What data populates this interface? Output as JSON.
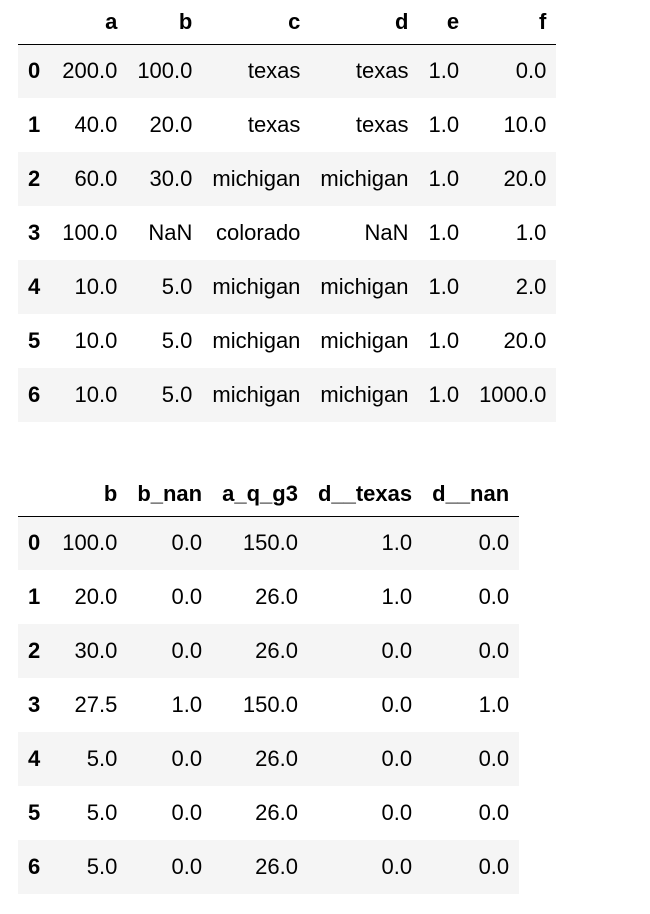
{
  "table1": {
    "columns": [
      "",
      "a",
      "b",
      "c",
      "d",
      "e",
      "f"
    ],
    "rows": [
      {
        "index": "0",
        "cells": [
          "200.0",
          "100.0",
          "texas",
          "texas",
          "1.0",
          "0.0"
        ]
      },
      {
        "index": "1",
        "cells": [
          "40.0",
          "20.0",
          "texas",
          "texas",
          "1.0",
          "10.0"
        ]
      },
      {
        "index": "2",
        "cells": [
          "60.0",
          "30.0",
          "michigan",
          "michigan",
          "1.0",
          "20.0"
        ]
      },
      {
        "index": "3",
        "cells": [
          "100.0",
          "NaN",
          "colorado",
          "NaN",
          "1.0",
          "1.0"
        ]
      },
      {
        "index": "4",
        "cells": [
          "10.0",
          "5.0",
          "michigan",
          "michigan",
          "1.0",
          "2.0"
        ]
      },
      {
        "index": "5",
        "cells": [
          "10.0",
          "5.0",
          "michigan",
          "michigan",
          "1.0",
          "20.0"
        ]
      },
      {
        "index": "6",
        "cells": [
          "10.0",
          "5.0",
          "michigan",
          "michigan",
          "1.0",
          "1000.0"
        ]
      }
    ]
  },
  "table2": {
    "columns": [
      "",
      "b",
      "b_nan",
      "a_q_g3",
      "d__texas",
      "d__nan"
    ],
    "rows": [
      {
        "index": "0",
        "cells": [
          "100.0",
          "0.0",
          "150.0",
          "1.0",
          "0.0"
        ]
      },
      {
        "index": "1",
        "cells": [
          "20.0",
          "0.0",
          "26.0",
          "1.0",
          "0.0"
        ]
      },
      {
        "index": "2",
        "cells": [
          "30.0",
          "0.0",
          "26.0",
          "0.0",
          "0.0"
        ]
      },
      {
        "index": "3",
        "cells": [
          "27.5",
          "1.0",
          "150.0",
          "0.0",
          "1.0"
        ]
      },
      {
        "index": "4",
        "cells": [
          "5.0",
          "0.0",
          "26.0",
          "0.0",
          "0.0"
        ]
      },
      {
        "index": "5",
        "cells": [
          "5.0",
          "0.0",
          "26.0",
          "0.0",
          "0.0"
        ]
      },
      {
        "index": "6",
        "cells": [
          "5.0",
          "0.0",
          "26.0",
          "0.0",
          "0.0"
        ]
      }
    ]
  }
}
